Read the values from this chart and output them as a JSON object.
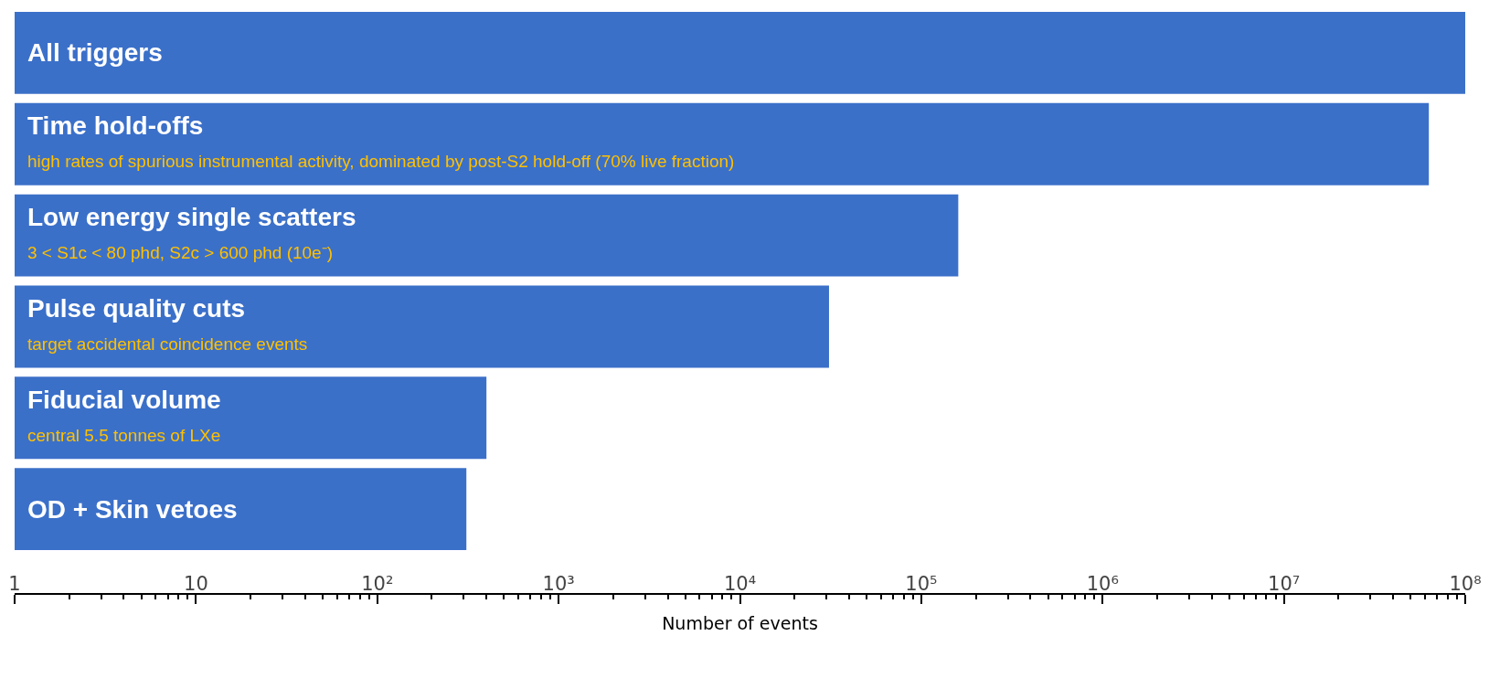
{
  "chart_data": {
    "type": "bar",
    "orientation": "horizontal",
    "log": "x",
    "xlabel": "Number of events",
    "categories": [
      "All triggers",
      "Time hold-offs\nhigh rates of spurious instrumental activity, dominated by post-S2 hold-off (70% live fraction)",
      "Low energy single scatters\n3 < S1c < 80 phd, S2c > 600 phd (10e⁻)",
      "Pulse quality cuts\ntarget accidental coincidence events",
      "Fiducial volume\ncentral 5.5 tonnes of LXe",
      "OD + Skin vetoes"
    ],
    "values": [
      100000000,
      63000000,
      160000,
      31000,
      400,
      310
    ],
    "color": "#3b70c9",
    "xlim": [
      1,
      100000000
    ],
    "xticks": [
      1,
      10,
      {
        "value": 100,
        "label": "10²"
      },
      {
        "value": 1000,
        "label": "10³"
      },
      {
        "value": 10000,
        "label": "10⁴"
      },
      {
        "value": 100000,
        "label": "10⁵"
      },
      {
        "value": 1000000,
        "label": "10⁶"
      },
      {
        "value": 10000000,
        "label": "10⁷"
      },
      {
        "value": 100000000,
        "label": "10⁸"
      }
    ],
    "tick_labels": "x"
  }
}
